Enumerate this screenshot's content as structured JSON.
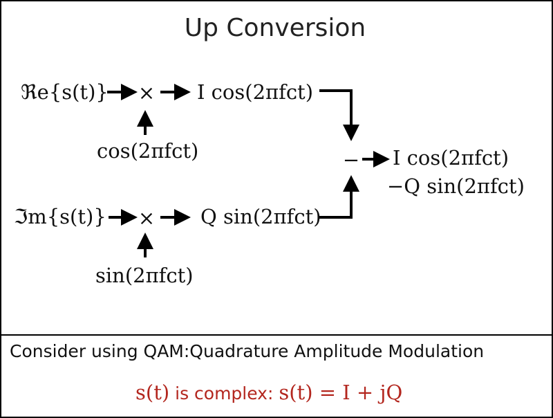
{
  "title": "Up Conversion",
  "diagram": {
    "top_input": "ℜe{s(t)}",
    "bottom_input": "ℑm{s(t)}",
    "multiply_symbol": "×",
    "top_carrier": "cos(2πfᴄt)",
    "bottom_carrier": "sin(2πfᴄt)",
    "top_product": "I cos(2πfᴄt)",
    "bottom_product": "Q sin(2πfᴄt)",
    "subtract_symbol": "−",
    "output_line1": "I cos(2πfᴄt)",
    "output_line2": "−Q sin(2πfᴄt)"
  },
  "footer": {
    "caption": "Consider using QAM:Quadrature Amplitude Modulation",
    "note_s": "s(t)",
    "note_text": " is complex: ",
    "note_eq": "s(t) = I + jQ"
  },
  "colors": {
    "text": "#111111",
    "accent": "#b3261e"
  }
}
